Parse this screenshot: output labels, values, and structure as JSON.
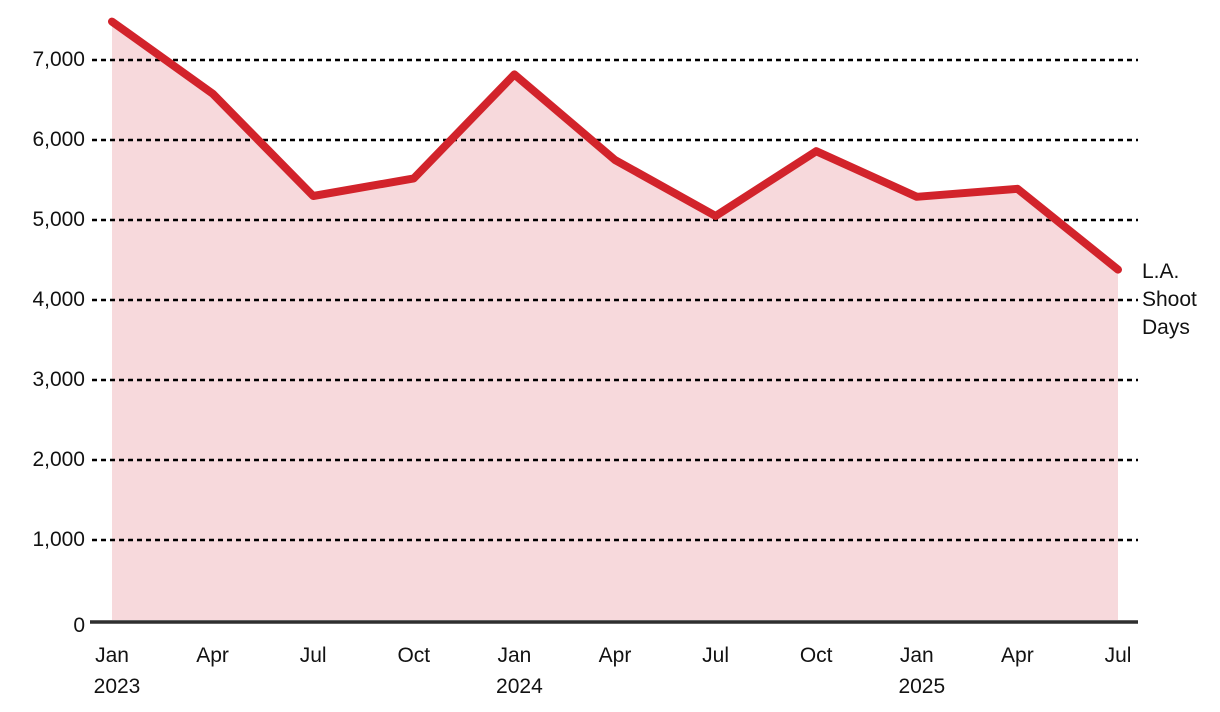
{
  "chart_data": {
    "type": "area",
    "title": "",
    "xlabel": "",
    "ylabel": "",
    "series": [
      {
        "name": "L.A. Shoot Days",
        "values": [
          7480,
          6580,
          5300,
          5520,
          6820,
          5750,
          5050,
          5860,
          5290,
          5390,
          4380
        ]
      }
    ],
    "categories": [
      "Jan 2023",
      "Apr 2023",
      "Jul 2023",
      "Oct 2023",
      "Jan 2024",
      "Apr 2024",
      "Jul 2024",
      "Oct 2024",
      "Jan 2025",
      "Apr 2025",
      "Jul 2025"
    ],
    "x_tick_months": [
      "Jan",
      "Apr",
      "Jul",
      "Oct",
      "Jan",
      "Apr",
      "Jul",
      "Oct",
      "Jan",
      "Apr",
      "Jul"
    ],
    "x_tick_years": {
      "0": "2023",
      "4": "2024",
      "8": "2025"
    },
    "y_ticks": [
      0,
      1000,
      2000,
      3000,
      4000,
      5000,
      6000,
      7000
    ],
    "y_tick_labels": [
      "0",
      "1,000",
      "2,000",
      "3,000",
      "4,000",
      "5,000",
      "6,000",
      "7,000"
    ],
    "ylim": [
      0,
      7600
    ],
    "grid": "horizontal-dashed",
    "legend_position": "end-of-line",
    "end_label_lines": [
      "L.A.",
      "Shoot",
      "Days"
    ],
    "colors": {
      "line": "#d2232b",
      "fill": "#f7d9dc",
      "grid": "#000000",
      "axis": "#2e2e2e",
      "text": "#121212",
      "background": "#ffffff"
    }
  }
}
